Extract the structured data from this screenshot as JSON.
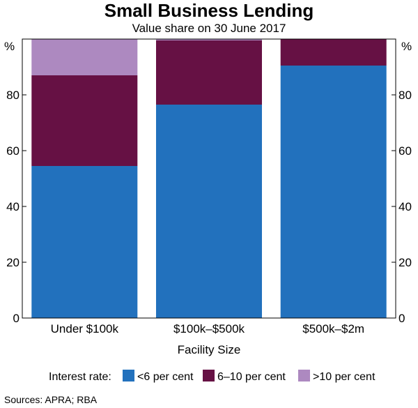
{
  "chart_data": {
    "type": "bar",
    "stacked": true,
    "title": "Small Business Lending",
    "subtitle": "Value share on 30 June 2017",
    "xlabel": "Facility Size",
    "ylabel": "%",
    "ylim": [
      0,
      100
    ],
    "yticks": [
      0,
      20,
      40,
      60,
      80
    ],
    "grid": false,
    "categories": [
      "Under $100k",
      "$100k–$500k",
      "$500k–$2m"
    ],
    "legend_title": "Interest rate:",
    "legend_position": "bottom",
    "series": [
      {
        "name": "<6 per cent",
        "color": "#2271bd",
        "values": [
          54.5,
          76.5,
          90.5
        ]
      },
      {
        "name": "6–10 per cent",
        "color": "#661144",
        "values": [
          32.5,
          23,
          9.5
        ]
      },
      {
        "name": ">10 per cent",
        "color": "#ad89c0",
        "values": [
          13,
          0.5,
          0
        ]
      }
    ]
  },
  "source": "Sources: APRA; RBA"
}
